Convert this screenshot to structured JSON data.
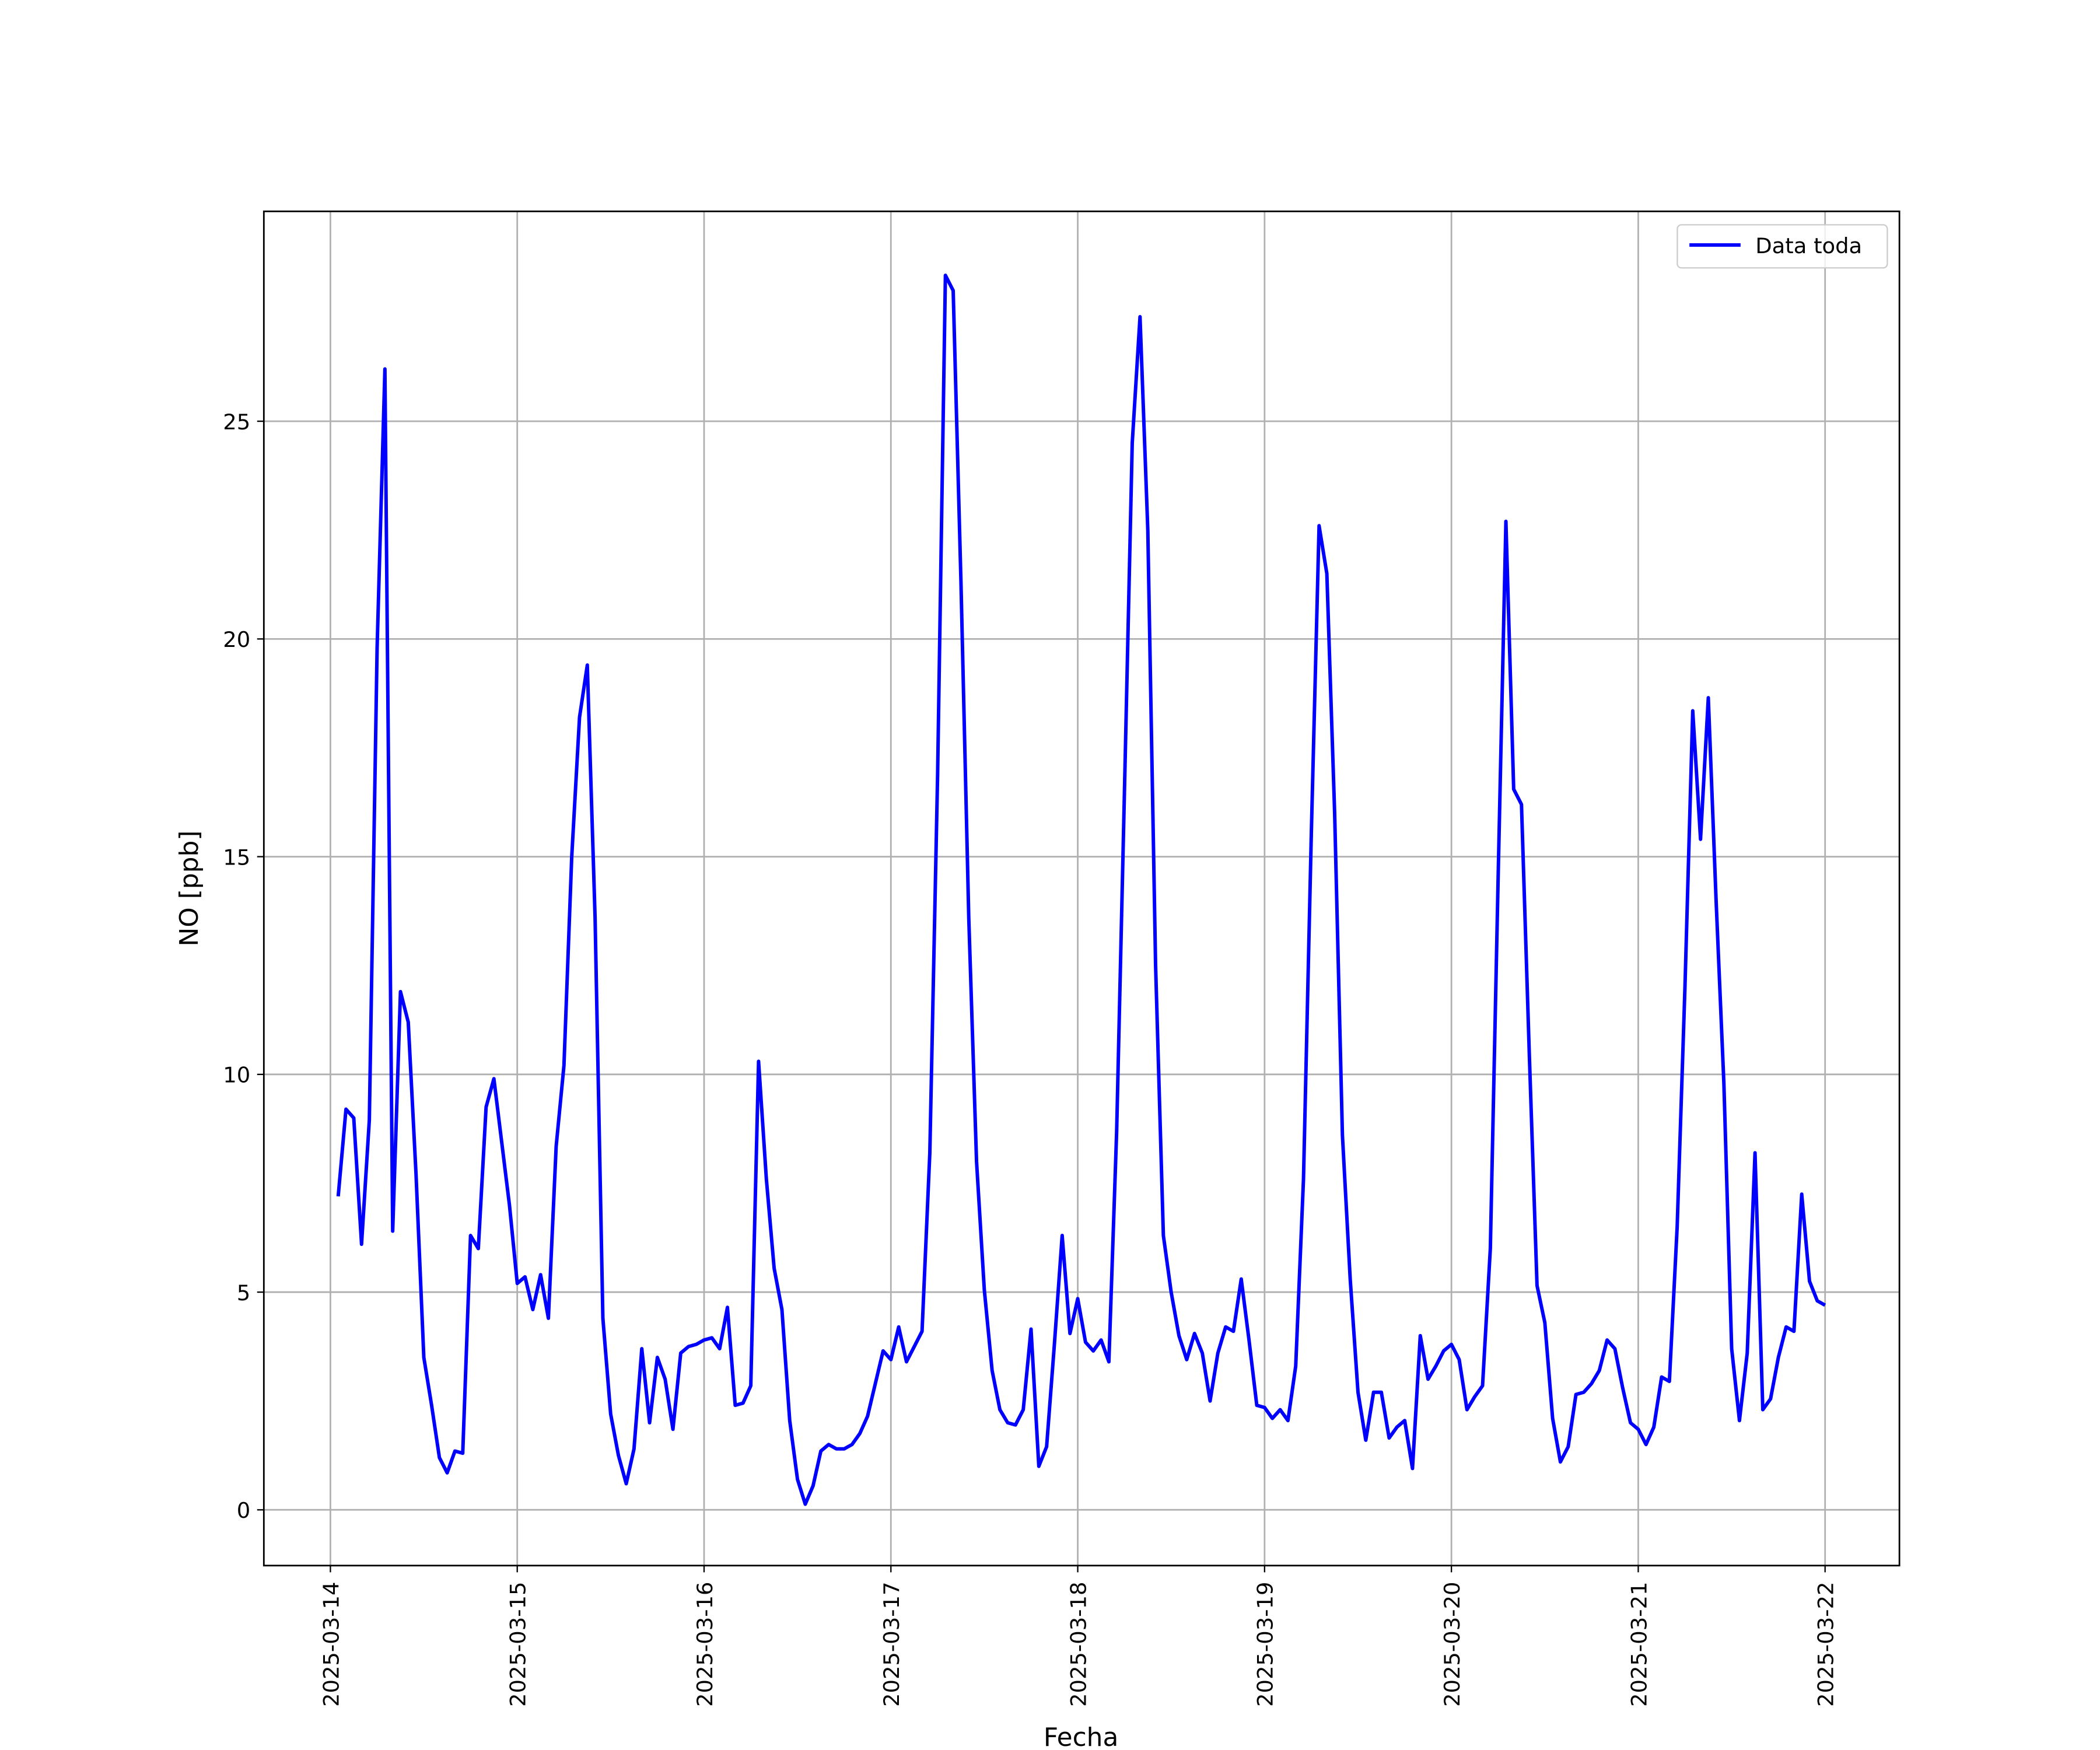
{
  "chart_data": {
    "type": "line",
    "x_label": "Fecha",
    "y_label": "NO [ppb]",
    "x": [
      "2025-03-14 01:00",
      "2025-03-14 02:00",
      "2025-03-14 03:00",
      "2025-03-14 04:00",
      "2025-03-14 05:00",
      "2025-03-14 06:00",
      "2025-03-14 07:00",
      "2025-03-14 08:00",
      "2025-03-14 09:00",
      "2025-03-14 10:00",
      "2025-03-14 11:00",
      "2025-03-14 12:00",
      "2025-03-14 13:00",
      "2025-03-14 14:00",
      "2025-03-14 15:00",
      "2025-03-14 16:00",
      "2025-03-14 17:00",
      "2025-03-14 18:00",
      "2025-03-14 19:00",
      "2025-03-14 20:00",
      "2025-03-14 21:00",
      "2025-03-14 22:00",
      "2025-03-14 23:00",
      "2025-03-15 00:00",
      "2025-03-15 01:00",
      "2025-03-15 02:00",
      "2025-03-15 03:00",
      "2025-03-15 04:00",
      "2025-03-15 05:00",
      "2025-03-15 06:00",
      "2025-03-15 07:00",
      "2025-03-15 08:00",
      "2025-03-15 09:00",
      "2025-03-15 10:00",
      "2025-03-15 11:00",
      "2025-03-15 12:00",
      "2025-03-15 13:00",
      "2025-03-15 14:00",
      "2025-03-15 15:00",
      "2025-03-15 16:00",
      "2025-03-15 17:00",
      "2025-03-15 18:00",
      "2025-03-15 19:00",
      "2025-03-15 20:00",
      "2025-03-15 21:00",
      "2025-03-15 22:00",
      "2025-03-15 23:00",
      "2025-03-16 00:00",
      "2025-03-16 01:00",
      "2025-03-16 02:00",
      "2025-03-16 03:00",
      "2025-03-16 04:00",
      "2025-03-16 05:00",
      "2025-03-16 06:00",
      "2025-03-16 07:00",
      "2025-03-16 08:00",
      "2025-03-16 09:00",
      "2025-03-16 10:00",
      "2025-03-16 11:00",
      "2025-03-16 12:00",
      "2025-03-16 13:00",
      "2025-03-16 14:00",
      "2025-03-16 15:00",
      "2025-03-16 16:00",
      "2025-03-16 17:00",
      "2025-03-16 18:00",
      "2025-03-16 19:00",
      "2025-03-16 20:00",
      "2025-03-16 21:00",
      "2025-03-16 22:00",
      "2025-03-16 23:00",
      "2025-03-17 00:00",
      "2025-03-17 01:00",
      "2025-03-17 02:00",
      "2025-03-17 03:00",
      "2025-03-17 04:00",
      "2025-03-17 05:00",
      "2025-03-17 06:00",
      "2025-03-17 07:00",
      "2025-03-17 08:00",
      "2025-03-17 09:00",
      "2025-03-17 10:00",
      "2025-03-17 11:00",
      "2025-03-17 12:00",
      "2025-03-17 13:00",
      "2025-03-17 14:00",
      "2025-03-17 15:00",
      "2025-03-17 16:00",
      "2025-03-17 17:00",
      "2025-03-17 18:00",
      "2025-03-17 19:00",
      "2025-03-17 20:00",
      "2025-03-17 21:00",
      "2025-03-17 22:00",
      "2025-03-17 23:00",
      "2025-03-18 00:00",
      "2025-03-18 01:00",
      "2025-03-18 02:00",
      "2025-03-18 03:00",
      "2025-03-18 04:00",
      "2025-03-18 05:00",
      "2025-03-18 06:00",
      "2025-03-18 07:00",
      "2025-03-18 08:00",
      "2025-03-18 09:00",
      "2025-03-18 10:00",
      "2025-03-18 11:00",
      "2025-03-18 12:00",
      "2025-03-18 13:00",
      "2025-03-18 14:00",
      "2025-03-18 15:00",
      "2025-03-18 16:00",
      "2025-03-18 17:00",
      "2025-03-18 18:00",
      "2025-03-18 19:00",
      "2025-03-18 20:00",
      "2025-03-18 21:00",
      "2025-03-18 22:00",
      "2025-03-18 23:00",
      "2025-03-19 00:00",
      "2025-03-19 01:00",
      "2025-03-19 02:00",
      "2025-03-19 03:00",
      "2025-03-19 04:00",
      "2025-03-19 05:00",
      "2025-03-19 06:00",
      "2025-03-19 07:00",
      "2025-03-19 08:00",
      "2025-03-19 09:00",
      "2025-03-19 10:00",
      "2025-03-19 11:00",
      "2025-03-19 12:00",
      "2025-03-19 13:00",
      "2025-03-19 14:00",
      "2025-03-19 15:00",
      "2025-03-19 16:00",
      "2025-03-19 17:00",
      "2025-03-19 18:00",
      "2025-03-19 19:00",
      "2025-03-19 20:00",
      "2025-03-19 21:00",
      "2025-03-19 22:00",
      "2025-03-19 23:00",
      "2025-03-20 00:00",
      "2025-03-20 01:00",
      "2025-03-20 02:00",
      "2025-03-20 03:00",
      "2025-03-20 04:00",
      "2025-03-20 05:00",
      "2025-03-20 06:00",
      "2025-03-20 07:00",
      "2025-03-20 08:00",
      "2025-03-20 09:00",
      "2025-03-20 10:00",
      "2025-03-20 11:00",
      "2025-03-20 12:00",
      "2025-03-20 13:00",
      "2025-03-20 14:00",
      "2025-03-20 15:00",
      "2025-03-20 16:00",
      "2025-03-20 17:00",
      "2025-03-20 18:00",
      "2025-03-20 19:00",
      "2025-03-20 20:00",
      "2025-03-20 21:00",
      "2025-03-20 22:00",
      "2025-03-20 23:00",
      "2025-03-21 00:00",
      "2025-03-21 01:00",
      "2025-03-21 02:00",
      "2025-03-21 03:00",
      "2025-03-21 04:00",
      "2025-03-21 05:00",
      "2025-03-21 06:00",
      "2025-03-21 07:00",
      "2025-03-21 08:00",
      "2025-03-21 09:00",
      "2025-03-21 10:00",
      "2025-03-21 11:00",
      "2025-03-21 12:00",
      "2025-03-21 13:00",
      "2025-03-21 14:00",
      "2025-03-21 15:00",
      "2025-03-21 16:00",
      "2025-03-21 17:00",
      "2025-03-21 18:00",
      "2025-03-21 19:00",
      "2025-03-21 20:00",
      "2025-03-21 21:00",
      "2025-03-21 22:00",
      "2025-03-21 23:00",
      "2025-03-22 00:00"
    ],
    "series": [
      {
        "name": "Data toda",
        "color": "#0000ff",
        "values": [
          7.2,
          9.2,
          9.0,
          6.1,
          8.95,
          19.8,
          26.2,
          6.4,
          11.9,
          11.2,
          7.7,
          3.5,
          2.4,
          1.2,
          0.85,
          1.35,
          1.3,
          6.3,
          6.0,
          9.25,
          9.9,
          8.45,
          7.0,
          5.2,
          5.35,
          4.6,
          5.4,
          4.4,
          8.35,
          10.2,
          15.0,
          18.2,
          19.4,
          13.6,
          4.4,
          2.2,
          1.25,
          0.6,
          1.4,
          3.7,
          2.0,
          3.5,
          3.0,
          1.85,
          3.6,
          3.75,
          3.8,
          3.9,
          3.95,
          3.7,
          4.65,
          2.4,
          2.45,
          2.85,
          10.3,
          7.6,
          5.55,
          4.6,
          2.05,
          0.7,
          0.13,
          0.55,
          1.35,
          1.5,
          1.4,
          1.4,
          1.5,
          1.75,
          2.15,
          2.9,
          3.65,
          3.45,
          4.2,
          3.4,
          3.75,
          4.1,
          8.2,
          16.9,
          28.35,
          28.0,
          21.3,
          13.6,
          8.0,
          5.05,
          3.2,
          2.3,
          2.0,
          1.95,
          2.3,
          4.15,
          1.0,
          1.45,
          3.8,
          6.3,
          4.05,
          4.85,
          3.85,
          3.65,
          3.9,
          3.4,
          8.7,
          16.5,
          24.5,
          27.4,
          22.5,
          12.5,
          6.3,
          5.0,
          4.0,
          3.45,
          4.05,
          3.6,
          2.5,
          3.6,
          4.2,
          4.1,
          5.3,
          3.9,
          2.4,
          2.35,
          2.1,
          2.3,
          2.05,
          3.3,
          7.6,
          15.5,
          22.6,
          21.5,
          16.0,
          8.6,
          5.3,
          2.7,
          1.6,
          2.7,
          2.7,
          1.65,
          1.9,
          2.05,
          0.95,
          4.0,
          3.0,
          3.3,
          3.65,
          3.8,
          3.45,
          2.3,
          2.6,
          2.85,
          6.0,
          14.5,
          22.7,
          16.55,
          16.2,
          10.5,
          5.15,
          4.3,
          2.1,
          1.1,
          1.45,
          2.65,
          2.7,
          2.9,
          3.2,
          3.9,
          3.7,
          2.8,
          2.0,
          1.85,
          1.5,
          1.9,
          3.05,
          2.95,
          6.5,
          12.0,
          18.35,
          15.4,
          18.65,
          14.0,
          9.8,
          3.7,
          2.05,
          3.6,
          8.2,
          2.3,
          2.55,
          3.5,
          4.2,
          4.1,
          7.25,
          5.25,
          4.8,
          4.7
        ]
      }
    ],
    "xlim": [
      "2025-03-13 15:27",
      "2025-03-22 09:33"
    ],
    "xticks": [
      "2025-03-14",
      "2025-03-15",
      "2025-03-16",
      "2025-03-17",
      "2025-03-18",
      "2025-03-19",
      "2025-03-20",
      "2025-03-21",
      "2025-03-22"
    ],
    "ylim": [
      -1.28,
      29.82
    ],
    "yticks": [
      0,
      5,
      10,
      15,
      20,
      25
    ],
    "grid": true,
    "legend": "upper right"
  }
}
